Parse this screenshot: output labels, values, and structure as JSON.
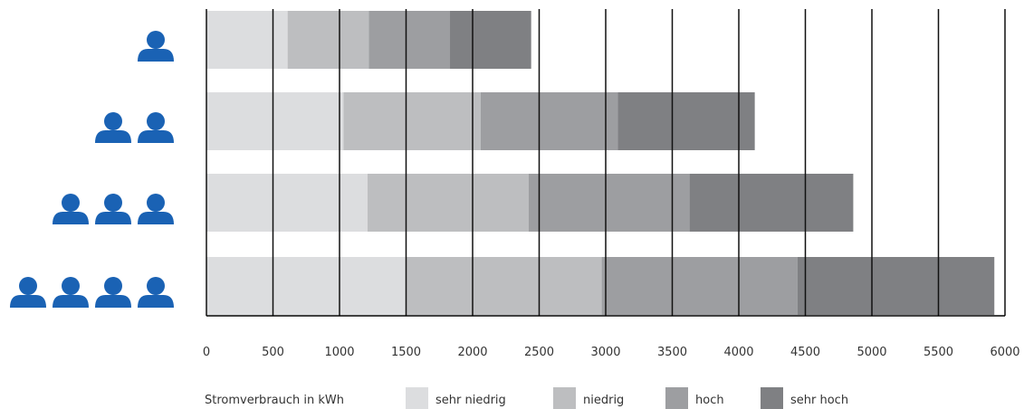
{
  "chart_data": {
    "type": "bar",
    "orientation": "horizontal",
    "stacked": true,
    "categories": [
      "1 Person",
      "2 Personen",
      "3 Personen",
      "4 Personen"
    ],
    "category_icons": [
      {
        "icon": "person-icon",
        "count": 1
      },
      {
        "icon": "person-icon",
        "count": 2
      },
      {
        "icon": "person-icon",
        "count": 3
      },
      {
        "icon": "person-icon",
        "count": 4
      }
    ],
    "series": [
      {
        "name": "sehr niedrig",
        "color": "#dcdddf",
        "values": [
          610,
          1030,
          1210,
          1500
        ]
      },
      {
        "name": "niedrig",
        "color": "#bdbec0",
        "values": [
          610,
          1030,
          1210,
          1470
        ]
      },
      {
        "name": "hoch",
        "color": "#9d9ea1",
        "values": [
          610,
          1030,
          1210,
          1470
        ]
      },
      {
        "name": "sehr hoch",
        "color": "#7f8083",
        "values": [
          610,
          1030,
          1230,
          1480
        ]
      }
    ],
    "xlabel": "Stromverbrauch in kWh",
    "xlim": [
      0,
      6000
    ],
    "xticks": [
      "0",
      "500",
      "1000",
      "1500",
      "2000",
      "2500",
      "3000",
      "3500",
      "4000",
      "4500",
      "5000",
      "5500",
      "6000"
    ],
    "grid": "vertical",
    "legend_position": "bottom",
    "icon_color": "#1a62b4"
  }
}
